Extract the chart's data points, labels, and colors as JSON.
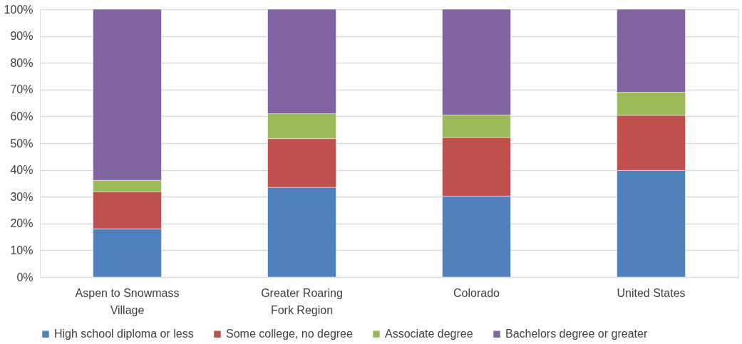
{
  "chart_data": {
    "type": "bar",
    "stacked": true,
    "categories": [
      "Aspen to Snowmass Village",
      "Greater Roaring Fork Region",
      "Colorado",
      "United States"
    ],
    "series": [
      {
        "name": "High school diploma or less",
        "color": "#4f81bd",
        "values": [
          18.0,
          33.5,
          30.2,
          39.8
        ]
      },
      {
        "name": "Some college, no degree",
        "color": "#c0504d",
        "values": [
          13.9,
          18.2,
          21.9,
          20.6
        ]
      },
      {
        "name": "Associate degree",
        "color": "#9bbb59",
        "values": [
          4.2,
          9.3,
          8.4,
          8.6
        ]
      },
      {
        "name": "Bachelors degree or greater",
        "color": "#8064a2",
        "values": [
          63.9,
          39.0,
          39.5,
          31.0
        ]
      }
    ],
    "ylim": [
      0,
      100
    ],
    "yticks": [
      {
        "value": 0,
        "label": "0%"
      },
      {
        "value": 10,
        "label": "10%"
      },
      {
        "value": 20,
        "label": "20%"
      },
      {
        "value": 30,
        "label": "30%"
      },
      {
        "value": 40,
        "label": "40%"
      },
      {
        "value": 50,
        "label": "50%"
      },
      {
        "value": 60,
        "label": "60%"
      },
      {
        "value": 70,
        "label": "70%"
      },
      {
        "value": 80,
        "label": "80%"
      },
      {
        "value": 90,
        "label": "90%"
      },
      {
        "value": 100,
        "label": "100%"
      }
    ],
    "grid": "y",
    "legend": "bottom"
  }
}
